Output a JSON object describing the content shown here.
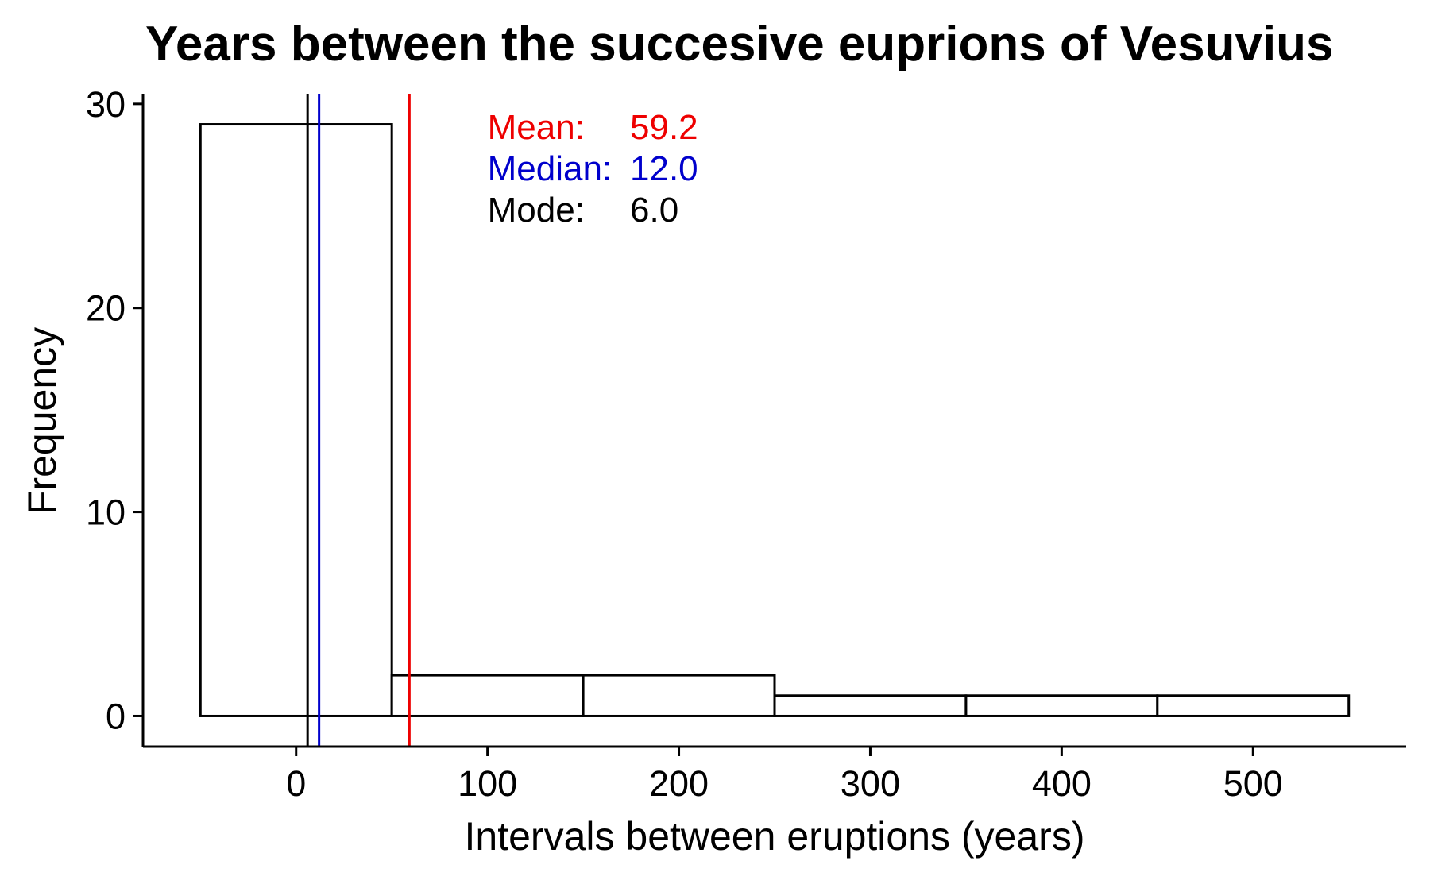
{
  "chart_data": {
    "type": "bar",
    "title": "Years between the succesive euprions of Vesuvius",
    "xlabel": "Intervals between eruptions (years)",
    "ylabel": "Frequency",
    "xlim": [
      -80,
      580
    ],
    "ylim": [
      -1.5,
      30.5
    ],
    "x_ticks": [
      0,
      100,
      200,
      300,
      400,
      500
    ],
    "y_ticks": [
      0,
      10,
      20,
      30
    ],
    "bins": [
      {
        "start": -50,
        "end": 50,
        "count": 29
      },
      {
        "start": 50,
        "end": 150,
        "count": 2
      },
      {
        "start": 150,
        "end": 250,
        "count": 2
      },
      {
        "start": 250,
        "end": 350,
        "count": 1
      },
      {
        "start": 350,
        "end": 450,
        "count": 1
      },
      {
        "start": 450,
        "end": 550,
        "count": 1
      }
    ],
    "reference_lines": [
      {
        "label": "Mean:",
        "value": 59.2,
        "display": "59.2",
        "color": "#ee0000"
      },
      {
        "label": "Median:",
        "value": 12.0,
        "display": "12.0",
        "color": "#0000cc"
      },
      {
        "label": "Mode:",
        "value": 6.0,
        "display": "6.0",
        "color": "#000000"
      }
    ],
    "grid": false,
    "legend": "none"
  }
}
